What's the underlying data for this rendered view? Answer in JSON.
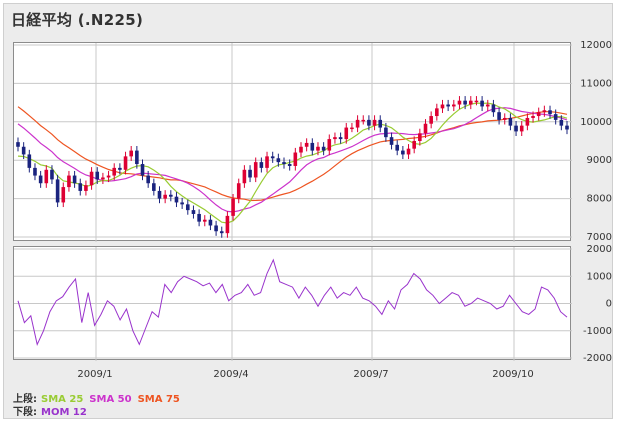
{
  "title": "日経平均 (.N225)",
  "chart_data": [
    {
      "type": "candlestick",
      "panel": "upper",
      "title": "日経平均 (.N225)",
      "ylim": [
        7000,
        12000
      ],
      "yticks": [
        "12000",
        "11000",
        "10000",
        "9000",
        "8000",
        "7000"
      ],
      "xticks": [
        "2009/1",
        "2009/4",
        "2009/7",
        "2009/10"
      ],
      "grid": true,
      "legend_label": "上段:",
      "overlays": [
        {
          "name": "SMA 25",
          "color": "#99cc33"
        },
        {
          "name": "SMA 50",
          "color": "#cc33cc"
        },
        {
          "name": "SMA 75",
          "color": "#ee5522"
        }
      ],
      "close": [
        9350,
        9150,
        8800,
        8600,
        8400,
        8750,
        8500,
        7900,
        8300,
        8600,
        8400,
        8200,
        8350,
        8700,
        8500,
        8550,
        8600,
        8800,
        8750,
        9100,
        9250,
        8900,
        8600,
        8400,
        8200,
        8000,
        8100,
        8050,
        7900,
        7850,
        7700,
        7600,
        7400,
        7450,
        7300,
        7150,
        7100,
        7550,
        8000,
        8400,
        8750,
        8550,
        8950,
        8800,
        9100,
        9050,
        8950,
        8900,
        8850,
        9200,
        9350,
        9450,
        9250,
        9350,
        9250,
        9550,
        9600,
        9550,
        9850,
        9850,
        10050,
        10050,
        9900,
        10050,
        9850,
        9600,
        9400,
        9250,
        9150,
        9300,
        9500,
        9700,
        9950,
        10150,
        10350,
        10450,
        10400,
        10450,
        10550,
        10450,
        10550,
        10550,
        10400,
        10450,
        10250,
        10050,
        10100,
        9900,
        9750,
        9900,
        10100,
        10150,
        10250,
        10300,
        10200,
        10050,
        9900,
        9800
      ]
    },
    {
      "type": "line",
      "panel": "lower",
      "ylim": [
        -2000,
        2000
      ],
      "yticks": [
        "2000",
        "1000",
        "0",
        "-1000",
        "-2000"
      ],
      "xticks": [
        "2009/1",
        "2009/4",
        "2009/7",
        "2009/10"
      ],
      "grid": true,
      "legend_label": "下段:",
      "series": [
        {
          "name": "MOM 12",
          "color": "#9933cc"
        }
      ],
      "values": [
        100,
        -700,
        -450,
        -1500,
        -1000,
        -300,
        100,
        250,
        600,
        900,
        -700,
        400,
        -800,
        -400,
        100,
        -100,
        -600,
        -200,
        -1000,
        -1500,
        -900,
        -300,
        -500,
        700,
        400,
        800,
        1000,
        900,
        800,
        650,
        750,
        400,
        700,
        100,
        300,
        400,
        700,
        300,
        400,
        1100,
        1600,
        800,
        700,
        600,
        200,
        600,
        300,
        -100,
        300,
        600,
        200,
        400,
        300,
        600,
        200,
        100,
        -100,
        -400,
        100,
        -200,
        500,
        700,
        1100,
        900,
        500,
        300,
        0,
        200,
        400,
        300,
        -100,
        0,
        200,
        100,
        0,
        -200,
        -100,
        300,
        0,
        -300,
        -400,
        -200,
        600,
        500,
        200,
        -300,
        -500
      ]
    }
  ]
}
